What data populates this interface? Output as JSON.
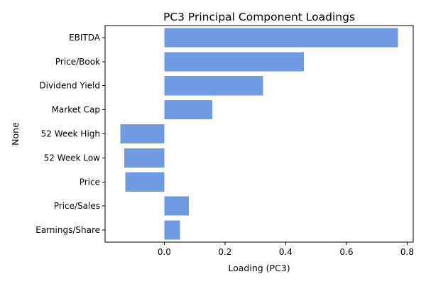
{
  "chart_data": {
    "type": "bar",
    "orientation": "horizontal",
    "title": "PC3 Principal Component Loadings",
    "xlabel": "Loading (PC3)",
    "ylabel": "None",
    "categories": [
      "EBITDA",
      "Price/Book",
      "Dividend Yield",
      "Market Cap",
      "52 Week High",
      "52 Week Low",
      "Price",
      "Price/Sales",
      "Earnings/Share"
    ],
    "values": [
      0.77,
      0.46,
      0.325,
      0.158,
      -0.145,
      -0.132,
      -0.128,
      0.081,
      0.052
    ],
    "xlim": [
      -0.195,
      0.82
    ],
    "xticks": [
      0.0,
      0.2,
      0.4,
      0.6,
      0.8
    ],
    "xtick_labels": [
      "0.0",
      "0.2",
      "0.4",
      "0.6",
      "0.8"
    ],
    "bar_color": "#6f9be3",
    "grid": false,
    "legend": "none"
  }
}
